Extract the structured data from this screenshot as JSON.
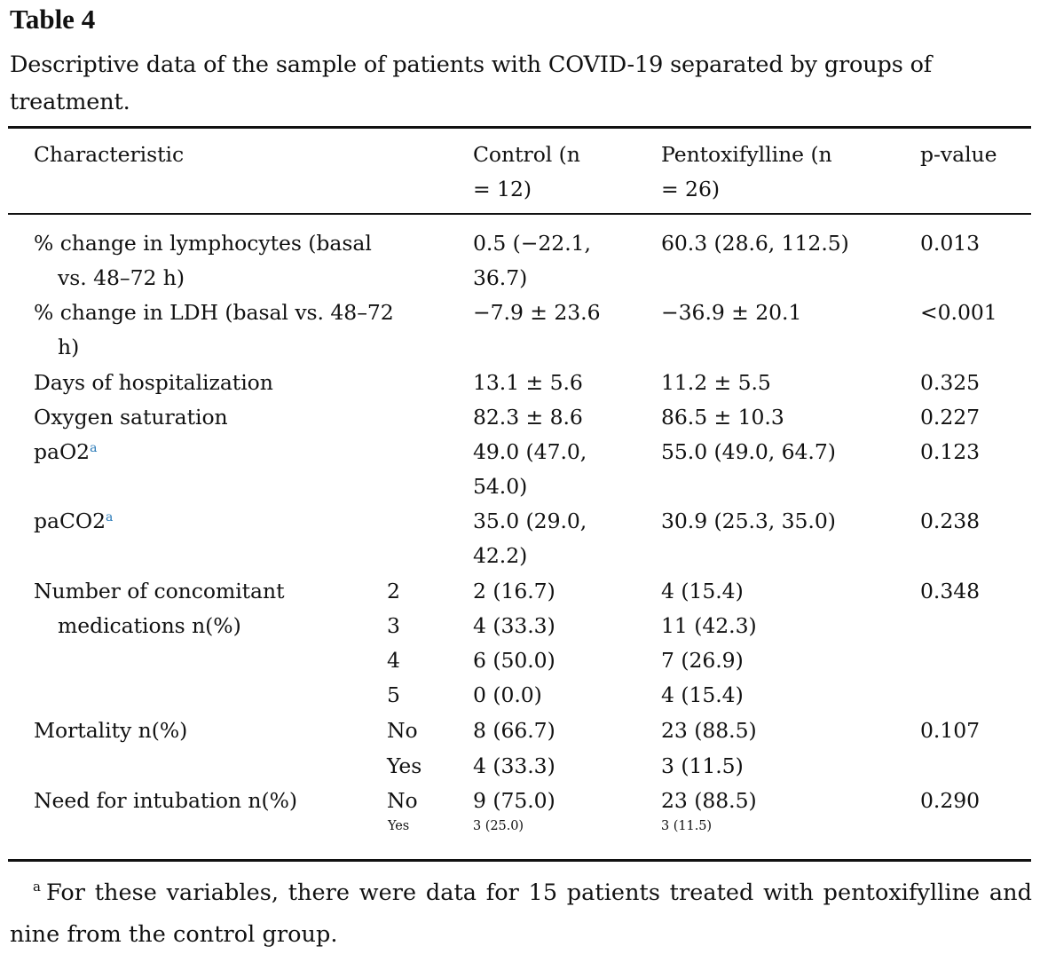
{
  "title": "Table 4",
  "caption": "Descriptive data of the sample of patients with COVID-19 separated by groups of treatment.",
  "headers": {
    "characteristic": "Characteristic",
    "control_l1": "Control (n",
    "control_l2": "= 12)",
    "ptx_l1": "Pentoxifylline (n",
    "ptx_l2": "= 26)",
    "pvalue": "p-value"
  },
  "rows": {
    "lymph": {
      "label_l1": "% change in lymphocytes (basal",
      "label_l2": "vs. 48–72 h)",
      "control_l1": "0.5 (−22.1,",
      "control_l2": "36.7)",
      "ptx": "60.3 (28.6, 112.5)",
      "p": "0.013"
    },
    "ldh": {
      "label_l1": "% change in LDH (basal vs. 48–72",
      "label_l2": "h)",
      "control": "−7.9 ± 23.6",
      "ptx": "−36.9 ± 20.1",
      "p": "<0.001"
    },
    "days": {
      "label": "Days of hospitalization",
      "control": "13.1 ± 5.6",
      "ptx": "11.2 ± 5.5",
      "p": "0.325"
    },
    "oxy": {
      "label": "Oxygen saturation",
      "control": "82.3 ± 8.6",
      "ptx": "86.5 ± 10.3",
      "p": "0.227"
    },
    "pao2": {
      "label": "paO2",
      "sup": "a",
      "control_l1": "49.0 (47.0,",
      "control_l2": "54.0)",
      "ptx": "55.0 (49.0, 64.7)",
      "p": "0.123"
    },
    "paco2": {
      "label": "paCO2",
      "sup": "a",
      "control_l1": "35.0 (29.0,",
      "control_l2": "42.2)",
      "ptx": "30.9 (25.3, 35.0)",
      "p": "0.238"
    },
    "meds": {
      "label_l1": "Number of concomitant",
      "label_l2": "medications n(%)",
      "p": "0.348",
      "levels": [
        {
          "cat": "2",
          "control": "2 (16.7)",
          "ptx": "4 (15.4)"
        },
        {
          "cat": "3",
          "control": "4 (33.3)",
          "ptx": "11 (42.3)"
        },
        {
          "cat": "4",
          "control": "6 (50.0)",
          "ptx": "7 (26.9)"
        },
        {
          "cat": "5",
          "control": "0 (0.0)",
          "ptx": "4 (15.4)"
        }
      ]
    },
    "mortality": {
      "label": "Mortality n(%)",
      "p": "0.107",
      "levels": [
        {
          "cat": "No",
          "control": "8 (66.7)",
          "ptx": "23 (88.5)"
        },
        {
          "cat": "Yes",
          "control": "4 (33.3)",
          "ptx": "3 (11.5)"
        }
      ]
    },
    "intubation": {
      "label": "Need for intubation n(%)",
      "p": "0.290",
      "levels": [
        {
          "cat": "No",
          "control": "9 (75.0)",
          "ptx": "23 (88.5)"
        },
        {
          "cat": "Yes",
          "control": "3 (25.0)",
          "ptx": "3 (11.5)"
        }
      ]
    }
  },
  "footnote": {
    "mark": "a",
    "text": "For these variables, there were data for 15 patients treated with pentoxifylline and nine from the control group."
  }
}
